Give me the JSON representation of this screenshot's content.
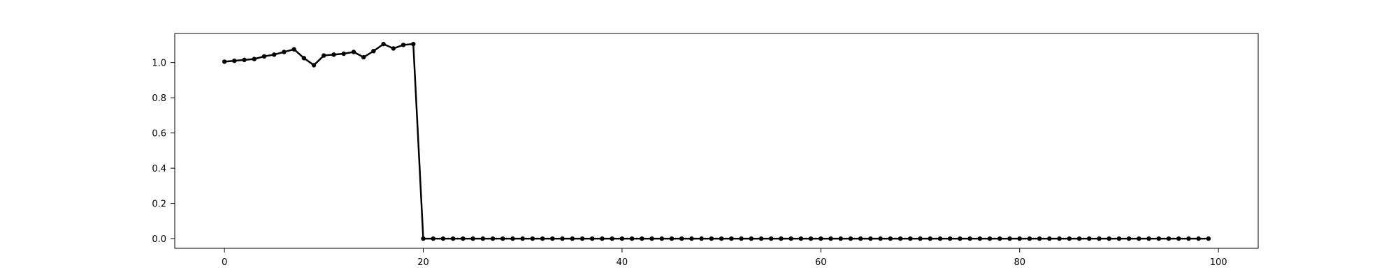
{
  "chart_data": {
    "type": "line",
    "title": "",
    "xlabel": "",
    "ylabel": "",
    "xlim": [
      -5,
      104
    ],
    "ylim": [
      -0.055,
      1.165
    ],
    "xticks": [
      0,
      20,
      40,
      60,
      80,
      100
    ],
    "yticks": [
      0.0,
      0.2,
      0.4,
      0.6,
      0.8,
      1.0
    ],
    "xtick_labels": [
      "0",
      "20",
      "40",
      "60",
      "80",
      "100"
    ],
    "ytick_labels": [
      "0.0",
      "0.2",
      "0.4",
      "0.6",
      "0.8",
      "1.0"
    ],
    "grid": false,
    "legend": "none",
    "series": [
      {
        "color": "#000000",
        "marker": "dot",
        "x": [
          0,
          1,
          2,
          3,
          4,
          5,
          6,
          7,
          8,
          9,
          10,
          11,
          12,
          13,
          14,
          15,
          16,
          17,
          18,
          19,
          20,
          21,
          22,
          23,
          24,
          25,
          26,
          27,
          28,
          29,
          30,
          31,
          32,
          33,
          34,
          35,
          36,
          37,
          38,
          39,
          40,
          41,
          42,
          43,
          44,
          45,
          46,
          47,
          48,
          49,
          50,
          51,
          52,
          53,
          54,
          55,
          56,
          57,
          58,
          59,
          60,
          61,
          62,
          63,
          64,
          65,
          66,
          67,
          68,
          69,
          70,
          71,
          72,
          73,
          74,
          75,
          76,
          77,
          78,
          79,
          80,
          81,
          82,
          83,
          84,
          85,
          86,
          87,
          88,
          89,
          90,
          91,
          92,
          93,
          94,
          95,
          96,
          97,
          98,
          99
        ],
        "y": [
          1.005,
          1.01,
          1.015,
          1.02,
          1.035,
          1.045,
          1.06,
          1.075,
          1.025,
          0.985,
          1.04,
          1.045,
          1.05,
          1.06,
          1.03,
          1.065,
          1.105,
          1.08,
          1.1,
          1.105,
          0.0,
          0.0,
          0.0,
          0.0,
          0.0,
          0.0,
          0.0,
          0.0,
          0.0,
          0.0,
          0.0,
          0.0,
          0.0,
          0.0,
          0.0,
          0.0,
          0.0,
          0.0,
          0.0,
          0.0,
          0.0,
          0.0,
          0.0,
          0.0,
          0.0,
          0.0,
          0.0,
          0.0,
          0.0,
          0.0,
          0.0,
          0.0,
          0.0,
          0.0,
          0.0,
          0.0,
          0.0,
          0.0,
          0.0,
          0.0,
          0.0,
          0.0,
          0.0,
          0.0,
          0.0,
          0.0,
          0.0,
          0.0,
          0.0,
          0.0,
          0.0,
          0.0,
          0.0,
          0.0,
          0.0,
          0.0,
          0.0,
          0.0,
          0.0,
          0.0,
          0.0,
          0.0,
          0.0,
          0.0,
          0.0,
          0.0,
          0.0,
          0.0,
          0.0,
          0.0,
          0.0,
          0.0,
          0.0,
          0.0,
          0.0,
          0.0,
          0.0,
          0.0,
          0.0,
          0.0
        ]
      }
    ]
  }
}
